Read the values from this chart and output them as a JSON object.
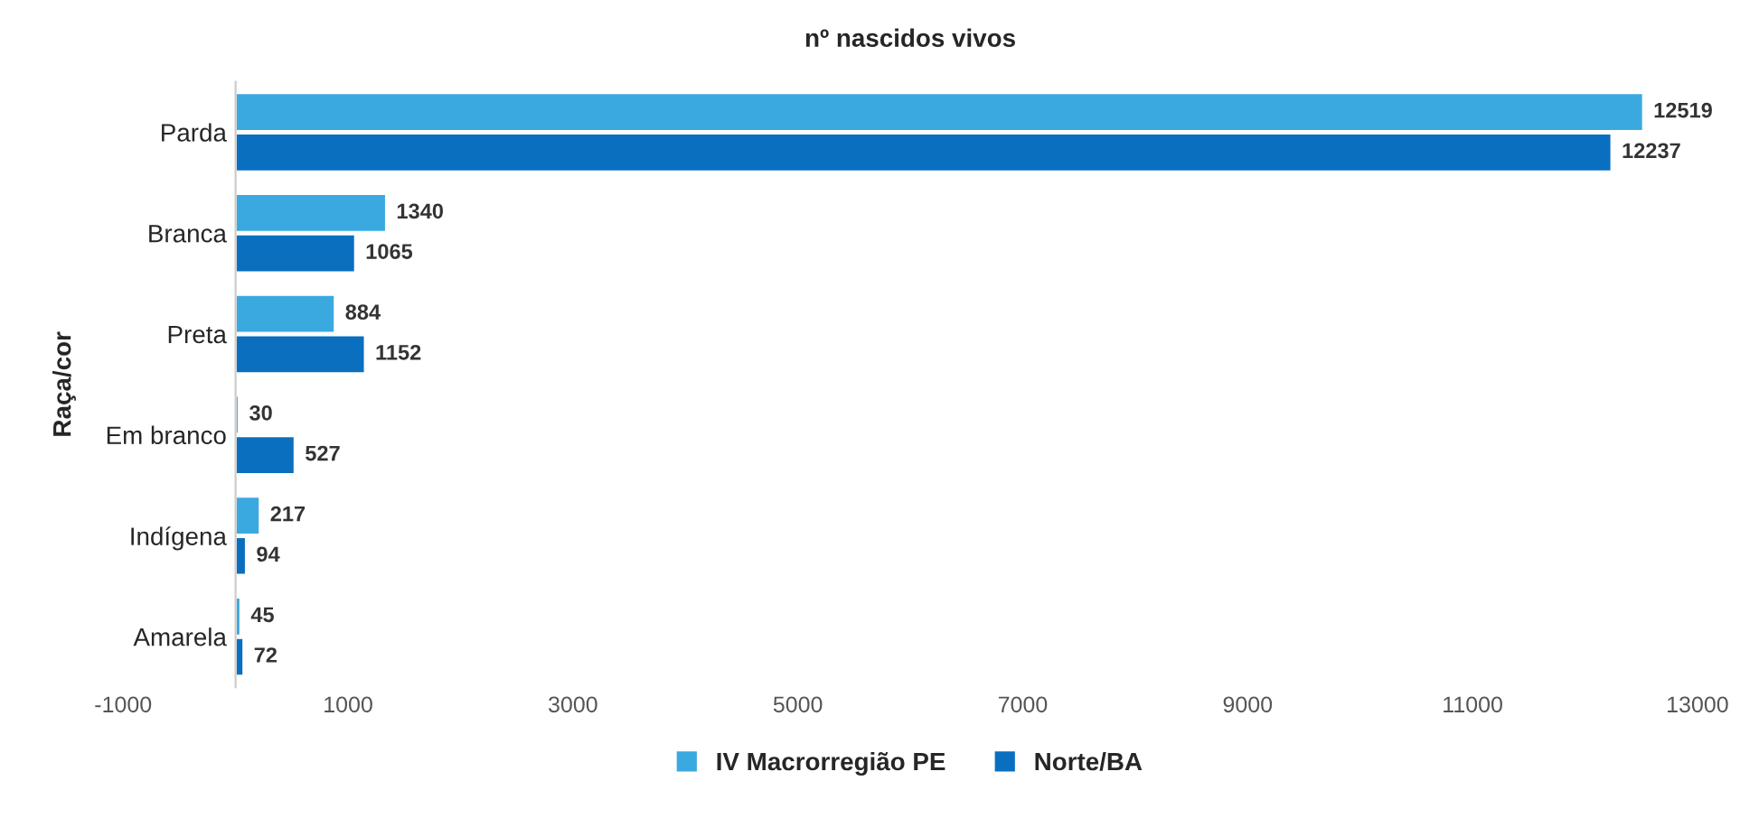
{
  "chart_data": {
    "type": "bar",
    "orientation": "horizontal",
    "title": "nº nascidos vivos",
    "ylabel": "Raça/cor",
    "categories": [
      "Parda",
      "Branca",
      "Preta",
      "Em branco",
      "Indígena",
      "Amarela"
    ],
    "series": [
      {
        "name": "IV Macrorregião PE",
        "color": "#3aa9e0",
        "values": [
          12519,
          1340,
          884,
          30,
          217,
          45
        ]
      },
      {
        "name": "Norte/BA",
        "color": "#0b6fc0",
        "values": [
          12237,
          1065,
          1152,
          527,
          94,
          72
        ]
      }
    ],
    "xlim": [
      -1000,
      13000
    ],
    "xticks": [
      -1000,
      1000,
      3000,
      5000,
      7000,
      9000,
      11000,
      13000
    ],
    "data_labels": true,
    "grid": false,
    "legend": "bottom"
  }
}
